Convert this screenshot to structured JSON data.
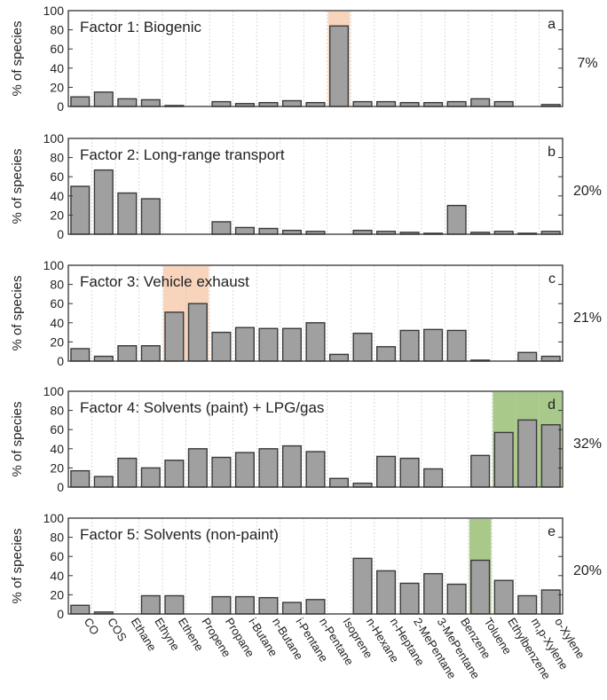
{
  "figure": {
    "ylabel": "% of species",
    "categories": [
      "CO",
      "COS",
      "Ethane",
      "Ethyne",
      "Ethene",
      "Propene",
      "Propane",
      "i-Butane",
      "n-Butane",
      "i-Pentane",
      "n-Pentane",
      "Isoprene",
      "n-Hexane",
      "n-Heptane",
      "2-MePentane",
      "3-MePentane",
      "Benzene",
      "Toluene",
      "Ethylbenzene",
      "m,p-Xylene",
      "o-Xylene"
    ],
    "colors": {
      "bar": "#a0a0a0",
      "bar_edge": "#3a3a3a",
      "orange_highlight": "#f8d4bc",
      "green_highlight": "#a9c98a"
    }
  },
  "chart_data": [
    {
      "type": "bar",
      "panel": "a",
      "title": "Factor 1: Biogenic",
      "contribution": "7%",
      "ylabel": "% of species",
      "ylim": [
        0,
        100
      ],
      "yticks": [
        0,
        20,
        40,
        60,
        80,
        100
      ],
      "highlight": {
        "categories": [
          "Isoprene"
        ],
        "color": "orange"
      },
      "values": [
        10,
        15,
        8,
        7,
        1,
        0,
        5,
        3,
        4,
        6,
        4,
        84,
        5,
        5,
        4,
        4,
        5,
        8,
        5,
        0,
        2
      ]
    },
    {
      "type": "bar",
      "panel": "b",
      "title": "Factor 2: Long-range transport",
      "contribution": "20%",
      "ylabel": "% of species",
      "ylim": [
        0,
        100
      ],
      "yticks": [
        0,
        20,
        40,
        60,
        80,
        100
      ],
      "highlight": null,
      "values": [
        50,
        67,
        43,
        37,
        0,
        0,
        13,
        7,
        6,
        4,
        3,
        0,
        4,
        3,
        2,
        1,
        30,
        2,
        3,
        1,
        3
      ]
    },
    {
      "type": "bar",
      "panel": "c",
      "title": "Factor 3: Vehicle exhaust",
      "contribution": "21%",
      "ylabel": "% of species",
      "ylim": [
        0,
        100
      ],
      "yticks": [
        0,
        20,
        40,
        60,
        80,
        100
      ],
      "highlight": {
        "categories": [
          "Ethene",
          "Propene"
        ],
        "color": "orange"
      },
      "values": [
        13,
        5,
        16,
        16,
        51,
        60,
        30,
        35,
        34,
        34,
        40,
        7,
        29,
        15,
        32,
        33,
        32,
        1,
        0,
        9,
        5
      ]
    },
    {
      "type": "bar",
      "panel": "d",
      "title": "Factor 4: Solvents (paint) + LPG/gas",
      "contribution": "32%",
      "ylabel": "% of species",
      "ylim": [
        0,
        100
      ],
      "yticks": [
        0,
        20,
        40,
        60,
        80,
        100
      ],
      "highlight": {
        "categories": [
          "Ethylbenzene",
          "m,p-Xylene",
          "o-Xylene"
        ],
        "color": "green"
      },
      "values": [
        17,
        11,
        30,
        20,
        28,
        40,
        31,
        36,
        40,
        43,
        37,
        9,
        4,
        32,
        30,
        19,
        0,
        33,
        57,
        70,
        65
      ]
    },
    {
      "type": "bar",
      "panel": "e",
      "title": "Factor 5: Solvents (non-paint)",
      "contribution": "20%",
      "ylabel": "% of species",
      "ylim": [
        0,
        100
      ],
      "yticks": [
        0,
        20,
        40,
        60,
        80,
        100
      ],
      "highlight": {
        "categories": [
          "Toluene"
        ],
        "color": "green"
      },
      "values": [
        9,
        2,
        0,
        19,
        19,
        0,
        18,
        18,
        17,
        12,
        15,
        0,
        58,
        45,
        32,
        42,
        31,
        56,
        35,
        19,
        25
      ]
    }
  ]
}
